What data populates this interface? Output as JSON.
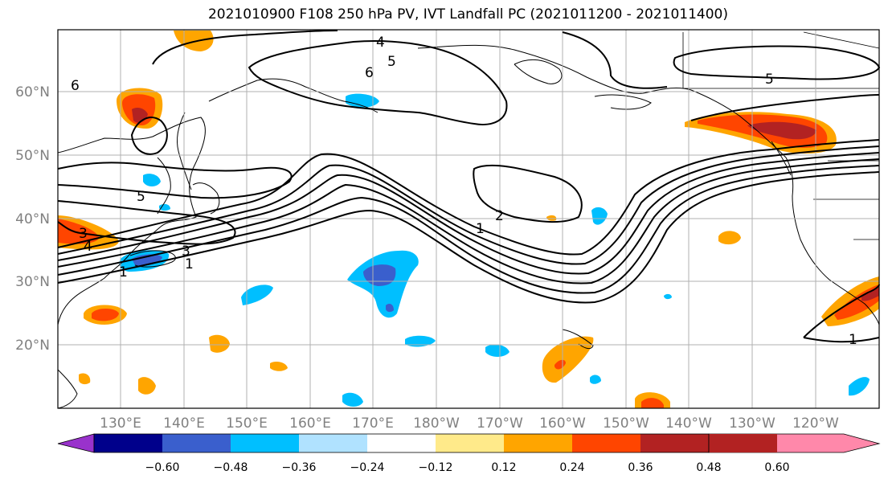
{
  "title": "2021010900 F108 250 hPa PV, IVT Landfall PC (2021011200 - 2021011400)",
  "latitude_labels": [
    "60°N",
    "50°N",
    "40°N",
    "30°N",
    "20°N"
  ],
  "longitude_labels": [
    "130°E",
    "140°E",
    "150°E",
    "160°E",
    "170°E",
    "180°W",
    "170°W",
    "160°W",
    "150°W",
    "140°W",
    "130°W",
    "120°W"
  ],
  "contour_labels": [
    "4",
    "5",
    "6",
    "5",
    "5",
    "6",
    "3",
    "4",
    "3",
    "1",
    "2",
    "1",
    "1",
    "1"
  ],
  "colorbar": {
    "ticks": [
      "−0.60",
      "−0.48",
      "−0.36",
      "−0.24",
      "−0.12",
      "0.12",
      "0.24",
      "0.36",
      "0.48",
      "0.60"
    ],
    "colors": [
      "#9932cc",
      "#00008b",
      "#3a5fcd",
      "#00bfff",
      "#b0e2ff",
      "#ffffff",
      "#ffea8a",
      "#ffa500",
      "#ff4500",
      "#b22222",
      "#ff88aa"
    ]
  },
  "colors": {
    "contour": "#000000",
    "grid": "#b0b0b0",
    "coastline": "#000000"
  }
}
